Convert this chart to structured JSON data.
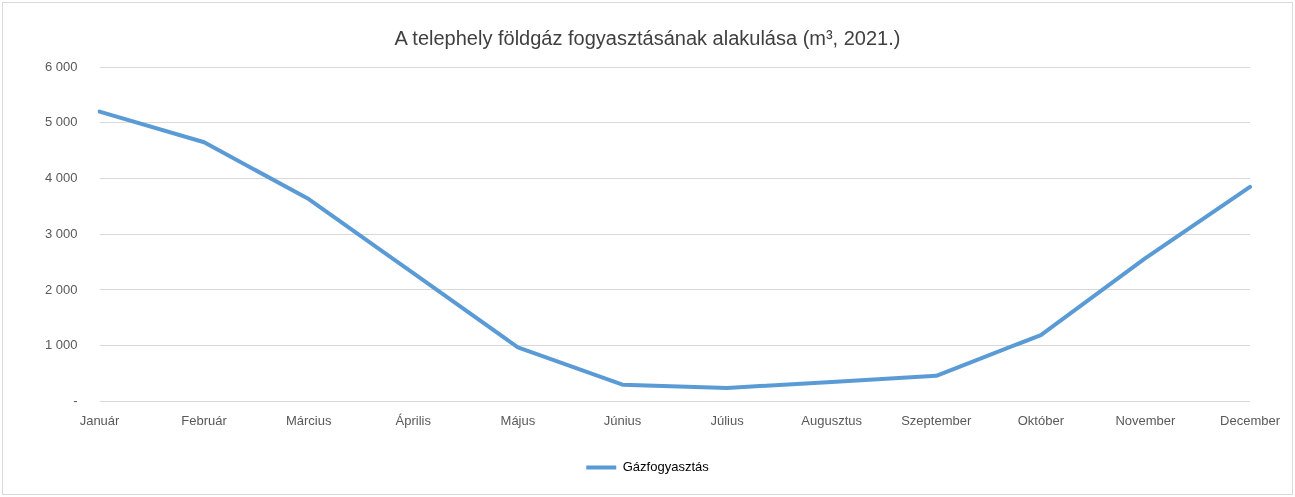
{
  "chart_data": {
    "type": "line",
    "title": "A telephely földgáz fogyasztásának alakulása (m³, 2021.)",
    "categories": [
      "Január",
      "Február",
      "Március",
      "Április",
      "Május",
      "Június",
      "Július",
      "Augusztus",
      "Szeptember",
      "Október",
      "November",
      "December"
    ],
    "series": [
      {
        "name": "Gázfogyasztás",
        "color": "#5b9bd5",
        "values": [
          5200,
          4650,
          3630,
          2300,
          970,
          300,
          240,
          350,
          460,
          1190,
          2570,
          3850
        ]
      }
    ],
    "ylim": [
      0,
      6000
    ],
    "yticks": [
      {
        "value": 0,
        "label": "-"
      },
      {
        "value": 1000,
        "label": "1 000"
      },
      {
        "value": 2000,
        "label": "2 000"
      },
      {
        "value": 3000,
        "label": "3 000"
      },
      {
        "value": 4000,
        "label": "4 000"
      },
      {
        "value": 5000,
        "label": "5 000"
      },
      {
        "value": 6000,
        "label": "6 000"
      }
    ],
    "grid": "y",
    "legend": "bottom",
    "marker": "none",
    "line_style": "solid"
  }
}
